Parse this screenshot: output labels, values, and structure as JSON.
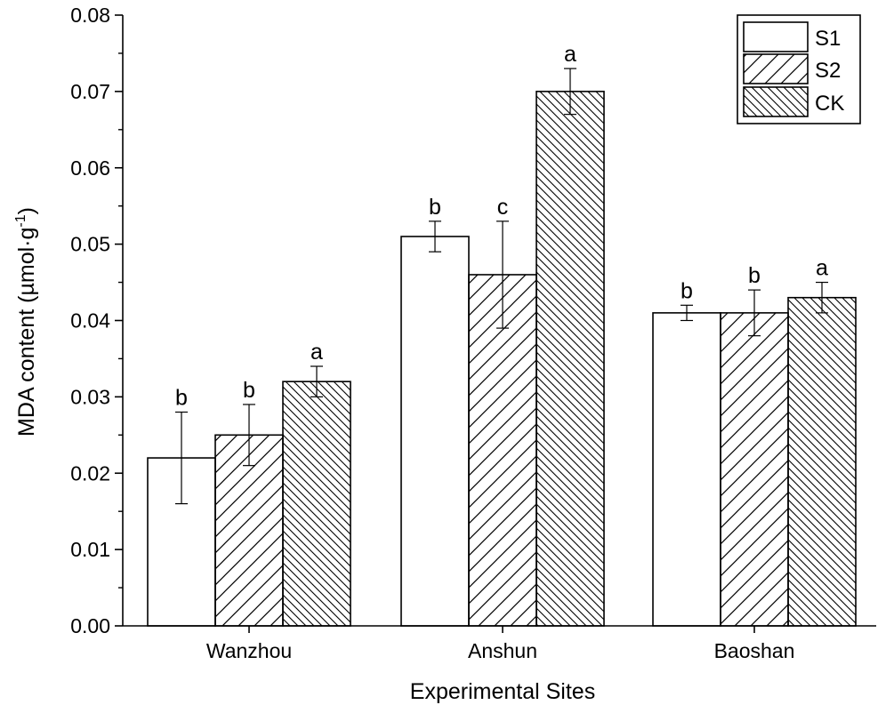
{
  "chart_data": {
    "type": "bar",
    "title": "",
    "xlabel": "Experimental Sites",
    "ylabel": "MDA content (µmol·g",
    "ylabel_sup": "-1",
    "ylabel_close": ")",
    "ylim": [
      0,
      0.08
    ],
    "yticks": [
      "0.00",
      "0.01",
      "0.02",
      "0.03",
      "0.04",
      "0.05",
      "0.06",
      "0.07",
      "0.08"
    ],
    "categories": [
      "Wanzhou",
      "Anshun",
      "Baoshan"
    ],
    "legend_position": "top-right",
    "series": [
      {
        "name": "S1",
        "pattern": "none",
        "values": [
          0.022,
          0.051,
          0.041
        ],
        "errors": [
          0.006,
          0.002,
          0.001
        ],
        "letters": [
          "b",
          "b",
          "b"
        ]
      },
      {
        "name": "S2",
        "pattern": "hatch-ne",
        "values": [
          0.025,
          0.046,
          0.041
        ],
        "errors": [
          0.004,
          0.007,
          0.003
        ],
        "letters": [
          "b",
          "c",
          "b"
        ]
      },
      {
        "name": "CK",
        "pattern": "hatch-se",
        "values": [
          0.032,
          0.07,
          0.043
        ],
        "errors": [
          0.002,
          0.003,
          0.002
        ],
        "letters": [
          "a",
          "a",
          "a"
        ]
      }
    ]
  }
}
